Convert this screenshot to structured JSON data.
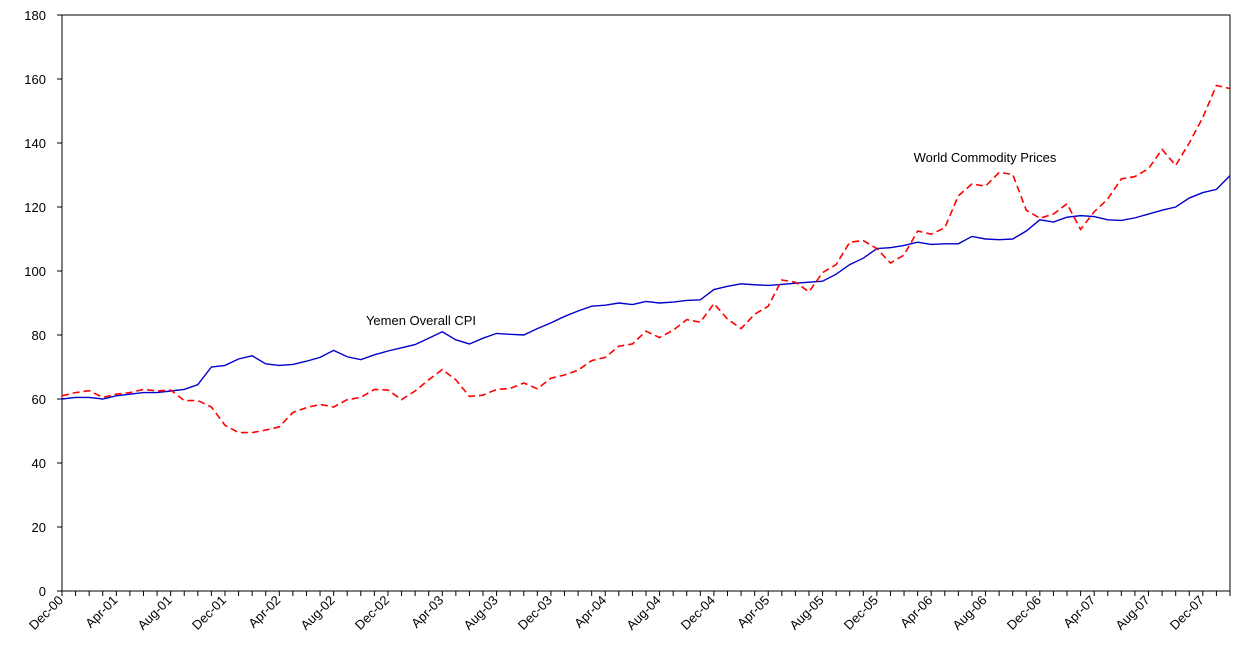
{
  "chart_data": {
    "type": "line",
    "categories": [
      "Dec-00",
      null,
      null,
      null,
      "Apr-01",
      null,
      null,
      null,
      "Aug-01",
      null,
      null,
      null,
      "Dec-01",
      null,
      null,
      null,
      "Apr-02",
      null,
      null,
      null,
      "Aug-02",
      null,
      null,
      null,
      "Dec-02",
      null,
      null,
      null,
      "Apr-03",
      null,
      null,
      null,
      "Aug-03",
      null,
      null,
      null,
      "Dec-03",
      null,
      null,
      null,
      "Apr-04",
      null,
      null,
      null,
      "Aug-04",
      null,
      null,
      null,
      "Dec-04",
      null,
      null,
      null,
      "Apr-05",
      null,
      null,
      null,
      "Aug-05",
      null,
      null,
      null,
      "Dec-05",
      null,
      null,
      null,
      "Apr-06",
      null,
      null,
      null,
      "Aug-06",
      null,
      null,
      null,
      "Dec-06",
      null,
      null,
      null,
      "Apr-07",
      null,
      null,
      null,
      "Aug-07",
      null,
      null,
      null,
      "Dec-07",
      null,
      null
    ],
    "series": [
      {
        "name": "Yemen Overall CPI",
        "color": "#0000cc",
        "dash": false,
        "values": [
          60,
          60.5,
          60.5,
          60,
          61,
          61.5,
          62,
          62,
          62.5,
          63,
          64.5,
          70,
          70.5,
          72.5,
          73.5,
          71,
          70.5,
          70.8,
          71.8,
          73,
          75.2,
          73.2,
          72.3,
          73.8,
          75,
          76,
          77,
          79,
          81,
          78.5,
          77.2,
          79,
          80.5,
          80.2,
          80,
          82,
          83.8,
          85.8,
          87.5,
          89,
          89.3,
          90,
          89.5,
          90.5,
          90,
          90.3,
          90.8,
          91,
          94.2,
          95.2,
          96,
          95.7,
          95.5,
          95.8,
          96.2,
          96.5,
          96.8,
          99,
          102,
          104,
          107,
          107.3,
          108,
          109,
          108.3,
          108.5,
          108.5,
          110.8,
          110,
          109.8,
          110,
          112.5,
          116,
          115.3,
          116.8,
          117.3,
          117,
          116,
          115.8,
          116.6,
          117.8,
          119,
          120,
          122.8,
          124.5,
          125.5,
          129.8
        ]
      },
      {
        "name": "World Commodity Prices",
        "color": "#ff0000",
        "dash": true,
        "values": [
          61,
          62,
          62.6,
          60.5,
          61.5,
          62,
          63,
          62.5,
          62.8,
          59.5,
          59.5,
          57.5,
          51.8,
          49.5,
          49.5,
          50.3,
          51.3,
          55.8,
          57.3,
          58.3,
          57.5,
          59.8,
          60.5,
          63,
          62.8,
          59.8,
          62.5,
          66,
          69.2,
          66,
          60.8,
          61.2,
          63,
          63.3,
          65,
          63.2,
          66.5,
          67.5,
          69,
          72,
          73,
          76.5,
          77.2,
          81.2,
          79.2,
          81.5,
          84.8,
          84,
          89.8,
          85,
          82,
          86.5,
          89,
          97.2,
          96.5,
          93.5,
          99.5,
          102,
          109,
          109.5,
          107,
          102.5,
          105,
          112.5,
          111.5,
          113.5,
          123.5,
          127.2,
          126.5,
          130.8,
          130.2,
          119,
          116.5,
          117.8,
          121,
          113,
          118.5,
          122.5,
          128.8,
          129.5,
          132,
          138,
          133,
          140,
          148,
          158,
          157
        ]
      }
    ],
    "ylim": [
      0,
      180
    ],
    "yticks": [
      0,
      20,
      40,
      60,
      80,
      100,
      120,
      140,
      160,
      180
    ],
    "grid": false
  }
}
